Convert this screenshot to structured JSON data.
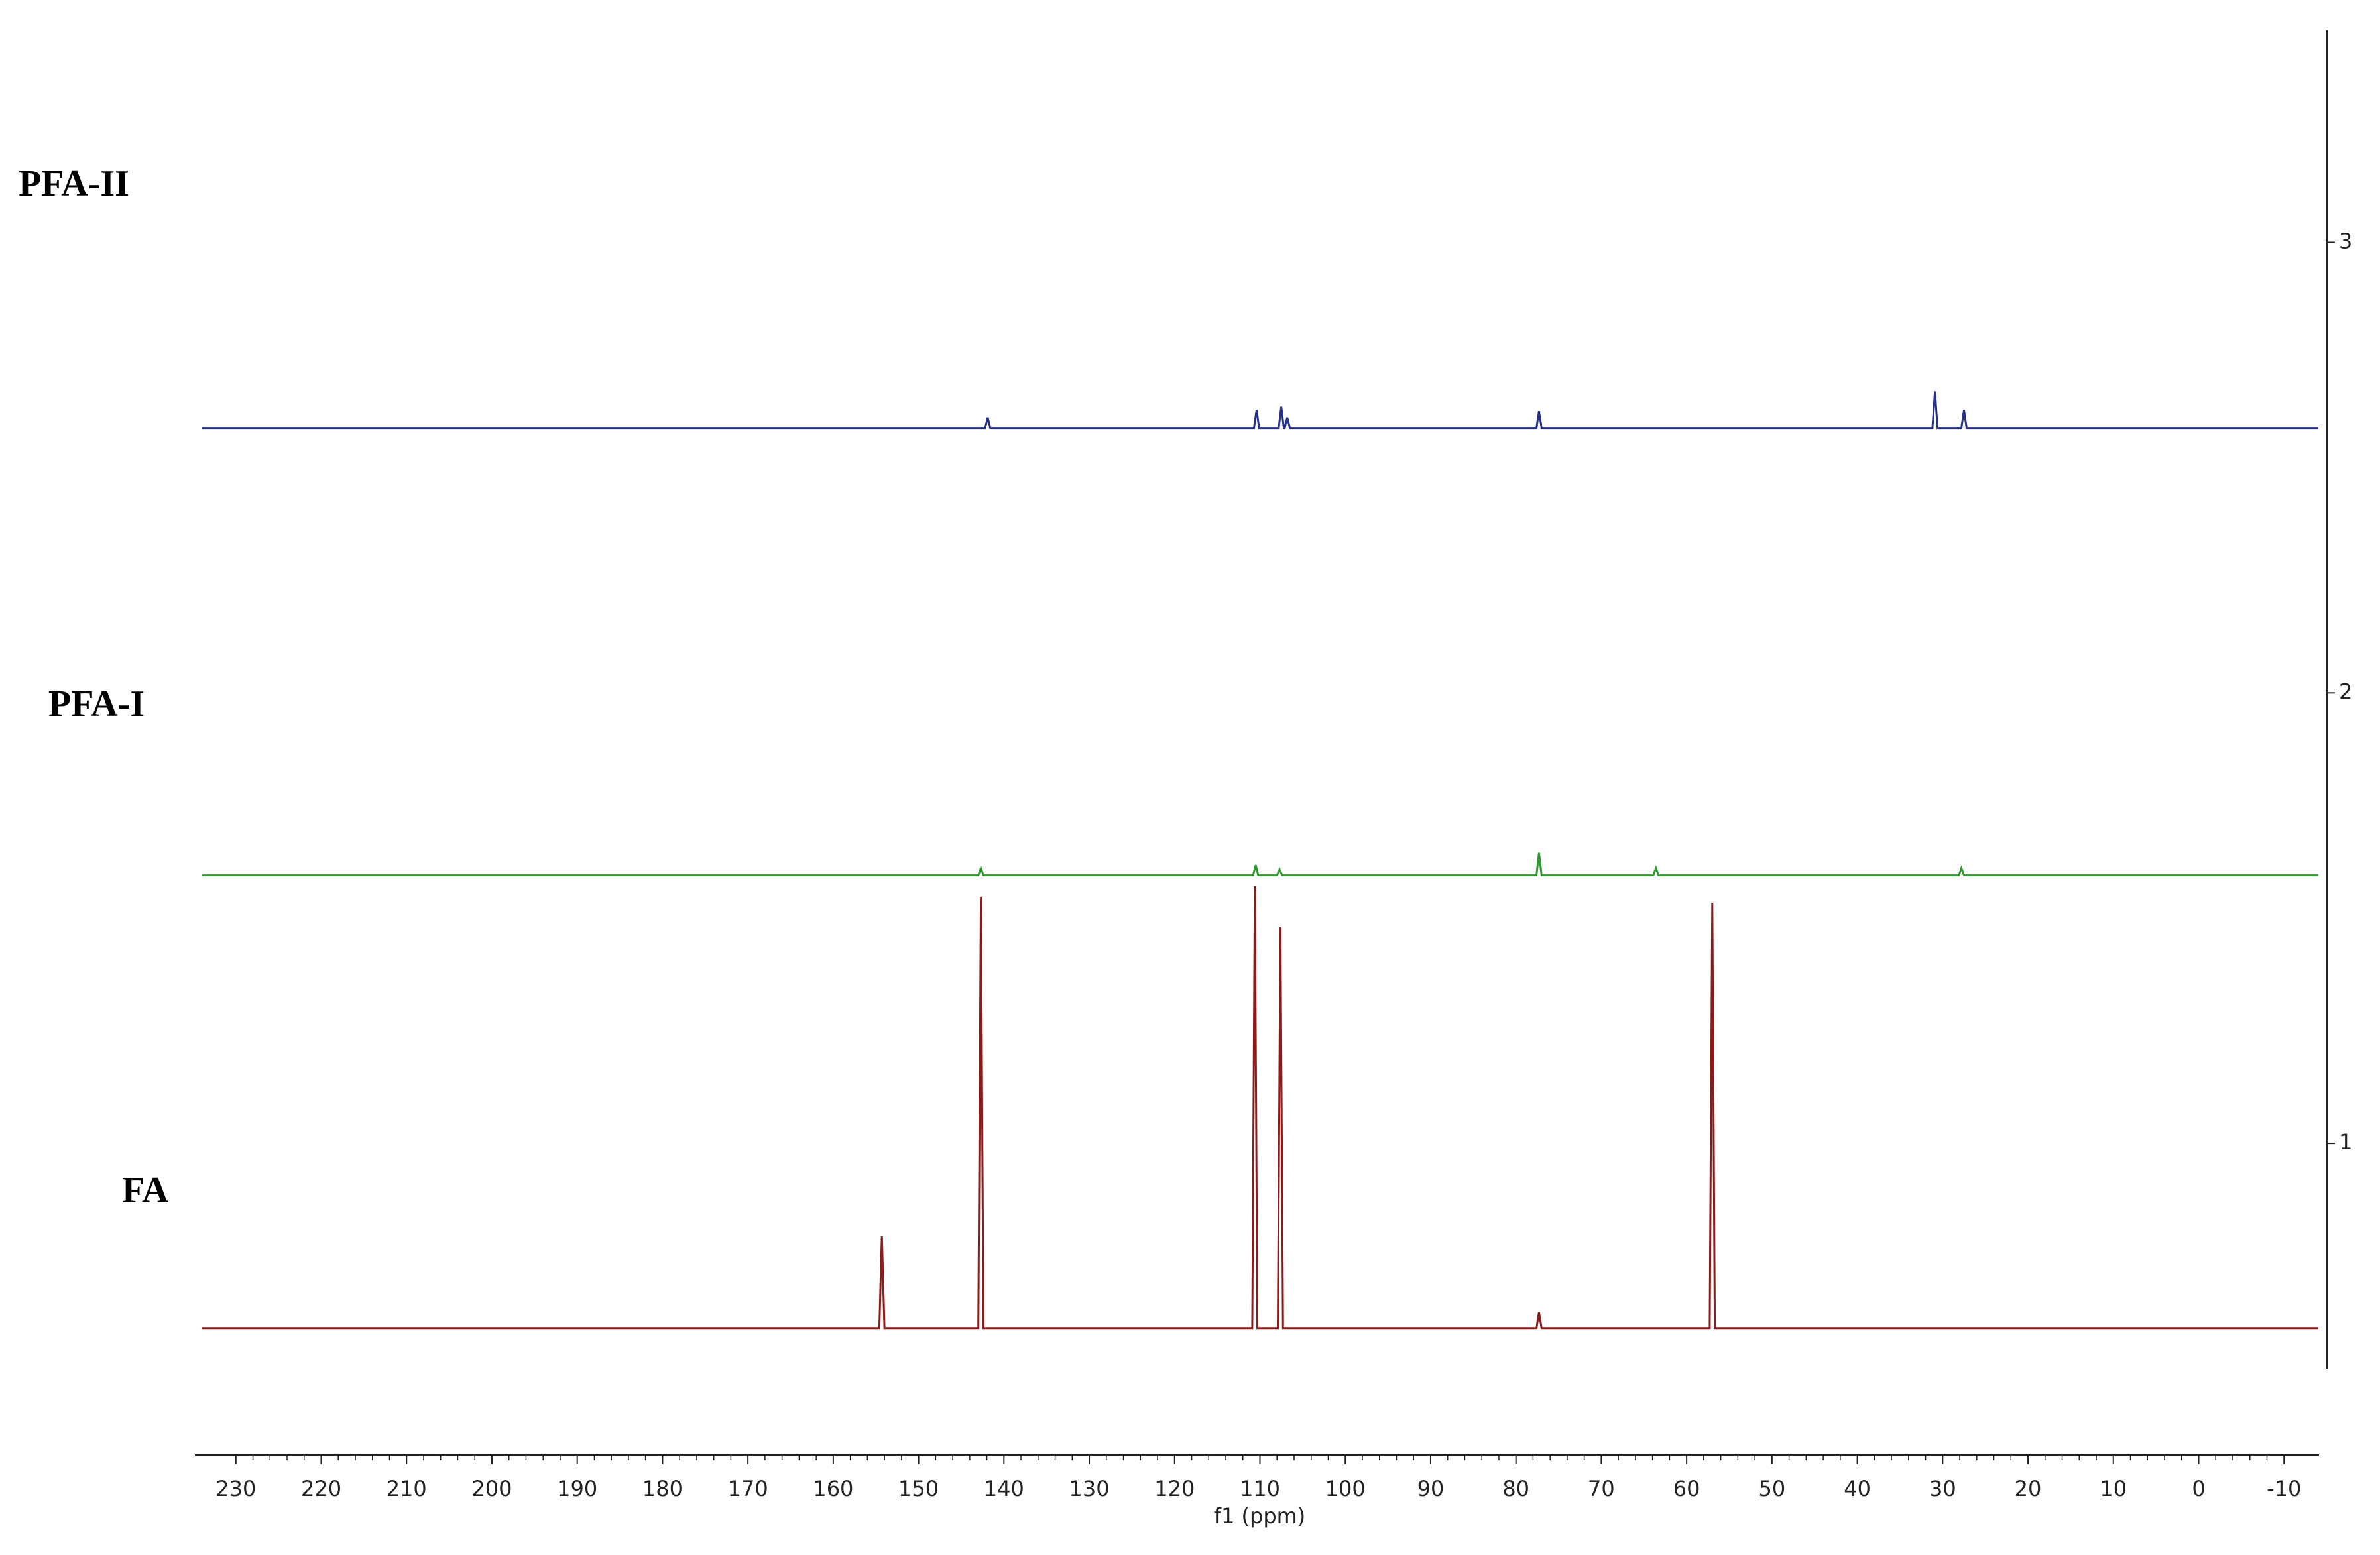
{
  "chart_data": {
    "type": "line",
    "x_label": "f1 (ppm)",
    "xlim": [
      234.8,
      -14.1
    ],
    "xticks": [
      230,
      220,
      210,
      200,
      190,
      180,
      170,
      160,
      150,
      140,
      130,
      120,
      110,
      100,
      90,
      80,
      70,
      60,
      50,
      40,
      30,
      20,
      10,
      0,
      -10
    ],
    "ylim": [
      0.5,
      3.47
    ],
    "y2ticks": [
      1,
      2,
      3
    ],
    "series": [
      {
        "name": "PFA-II",
        "color": "#27308a",
        "x": [
          234,
          142.2,
          141.9,
          141.6,
          110.7,
          110.4,
          110.1,
          107.8,
          107.5,
          107.2,
          107.1,
          106.8,
          106.5,
          77.6,
          77.3,
          77.0,
          31.2,
          30.9,
          30.6,
          27.8,
          27.5,
          27.2,
          -14
        ],
        "values": [
          2.588,
          2.588,
          2.611,
          2.588,
          2.588,
          2.628,
          2.588,
          2.588,
          2.635,
          2.588,
          2.588,
          2.611,
          2.588,
          2.588,
          2.625,
          2.588,
          2.588,
          2.669,
          2.588,
          2.588,
          2.628,
          2.588,
          2.588
        ]
      },
      {
        "name": "PFA-I",
        "color": "#2e9a2e",
        "x": [
          234,
          143.0,
          142.7,
          142.4,
          110.8,
          110.5,
          110.2,
          108.0,
          107.7,
          107.4,
          77.6,
          77.3,
          77.0,
          63.9,
          63.6,
          63.3,
          28.1,
          27.8,
          27.5,
          -14
        ],
        "values": [
          1.595,
          1.595,
          1.611,
          1.595,
          1.595,
          1.618,
          1.595,
          1.595,
          1.608,
          1.595,
          1.595,
          1.645,
          1.595,
          1.595,
          1.611,
          1.595,
          1.595,
          1.611,
          1.595,
          1.595
        ]
      },
      {
        "name": "FA",
        "color": "#8b1a1a",
        "x": [
          234,
          154.6,
          154.3,
          154.0,
          143.0,
          142.7,
          142.4,
          110.9,
          110.6,
          110.3,
          107.9,
          107.6,
          107.3,
          77.6,
          77.3,
          77.0,
          57.3,
          57.0,
          56.7,
          -14
        ],
        "values": [
          0.59,
          0.59,
          0.794,
          0.59,
          0.59,
          1.547,
          0.59,
          0.59,
          1.571,
          0.59,
          0.59,
          1.48,
          0.59,
          0.59,
          0.625,
          0.59,
          0.59,
          1.534,
          0.59,
          0.59
        ]
      }
    ]
  }
}
